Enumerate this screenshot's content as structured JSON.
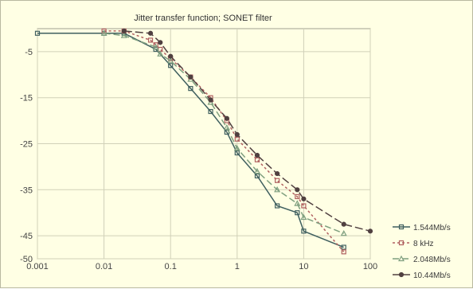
{
  "chart_data": {
    "type": "line",
    "title": "Jitter transfer function; SONET filter",
    "xlabel": "",
    "ylabel": "",
    "x_scale": "log",
    "xlim": [
      0.001,
      100
    ],
    "ylim": [
      -50,
      0
    ],
    "x_ticks": [
      0.001,
      0.01,
      0.1,
      1,
      10,
      100
    ],
    "x_tick_labels": [
      "0.001",
      "0.01",
      "0.1",
      "1",
      "10",
      "100"
    ],
    "y_ticks": [
      -5,
      -15,
      -25,
      -35,
      -45,
      -50
    ],
    "y_tick_labels": [
      "-5",
      "-15",
      "-25",
      "-35",
      "-45",
      "-50"
    ],
    "grid": true,
    "legend_position": "right",
    "series": [
      {
        "name": "1.544Mb/s",
        "color": "#3f5f5f",
        "dash": "",
        "marker": "square",
        "x": [
          0.001,
          0.01,
          0.02,
          0.06,
          0.1,
          0.2,
          0.4,
          0.7,
          1,
          2,
          4,
          8,
          10,
          40
        ],
        "y": [
          -1,
          -1,
          -1,
          -4.5,
          -8,
          -13,
          -18,
          -22.5,
          -27,
          -32,
          -38.5,
          -40,
          -44,
          -47.5
        ]
      },
      {
        "name": "8 kHz",
        "color": "#b06060",
        "dash": "3,3",
        "marker": "square",
        "x": [
          0.01,
          0.02,
          0.05,
          0.06,
          0.07,
          0.1,
          0.2,
          0.4,
          0.7,
          1,
          2,
          4,
          8,
          10,
          40
        ],
        "y": [
          -0.5,
          -0.5,
          -2.5,
          -3.5,
          -4.5,
          -6.5,
          -10.5,
          -15,
          -20,
          -24,
          -28.5,
          -33,
          -36.5,
          -38.5,
          -48.5
        ]
      },
      {
        "name": "2.048Mb/s",
        "color": "#7f9f7f",
        "dash": "8,4",
        "marker": "triangle",
        "x": [
          0.01,
          0.02,
          0.06,
          0.07,
          0.1,
          0.2,
          0.4,
          0.7,
          1,
          2,
          4,
          8,
          10,
          40
        ],
        "y": [
          -1,
          -1.5,
          -4,
          -5.5,
          -7,
          -11,
          -16,
          -21.5,
          -26,
          -31,
          -35,
          -38,
          -41,
          -44.5
        ]
      },
      {
        "name": "10.44Mb/s",
        "color": "#504040",
        "dash": "10,4",
        "marker": "circle",
        "x": [
          0.02,
          0.05,
          0.07,
          0.1,
          0.2,
          0.4,
          0.7,
          1,
          2,
          4,
          8,
          10,
          40,
          100
        ],
        "y": [
          -0.5,
          -1,
          -3,
          -6,
          -10.5,
          -15.5,
          -19.5,
          -23,
          -27.5,
          -31.5,
          -35,
          -37,
          -42.5,
          -44
        ]
      }
    ]
  }
}
